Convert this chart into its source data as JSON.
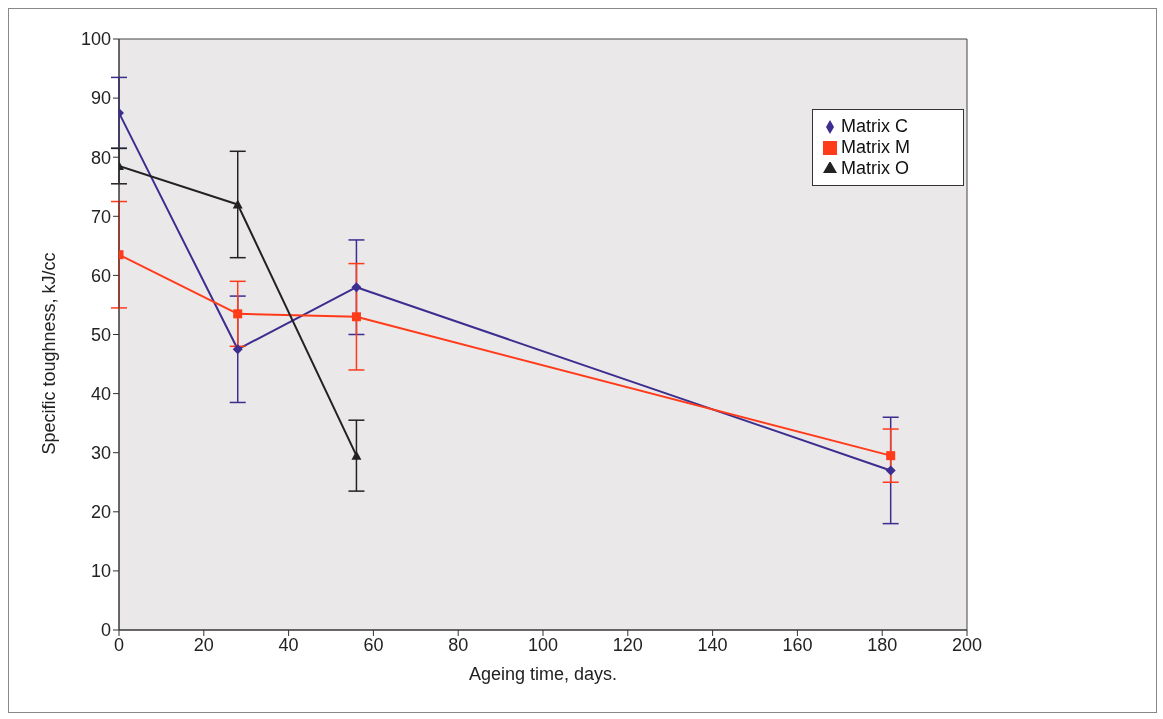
{
  "chart_data": {
    "type": "line",
    "xlabel": "Ageing time, days.",
    "ylabel": "Specific toughness, kJ/cc",
    "xlim": [
      0,
      200
    ],
    "xticks": [
      0,
      20,
      40,
      60,
      80,
      100,
      120,
      140,
      160,
      180,
      200
    ],
    "ylim": [
      0,
      100
    ],
    "yticks": [
      0,
      10,
      20,
      30,
      40,
      50,
      60,
      70,
      80,
      90,
      100
    ],
    "legend": "top right",
    "series": [
      {
        "name": "Matrix C",
        "color": "#3b2e8f",
        "marker": "diamond",
        "x": [
          0,
          28,
          56,
          182
        ],
        "values": [
          87.5,
          47.5,
          58,
          27
        ],
        "errors": [
          6,
          9,
          8,
          9
        ]
      },
      {
        "name": "Matrix M",
        "color": "#ff3b1a",
        "marker": "square",
        "x": [
          0,
          28,
          56,
          182
        ],
        "values": [
          63.5,
          53.5,
          53,
          29.5
        ],
        "errors": [
          9,
          5.5,
          9,
          4.5
        ]
      },
      {
        "name": "Matrix O",
        "color": "#222222",
        "marker": "triangle",
        "x": [
          0,
          28,
          56
        ],
        "values": [
          78.5,
          72,
          29.5
        ],
        "errors": [
          3,
          9,
          6
        ]
      }
    ]
  }
}
